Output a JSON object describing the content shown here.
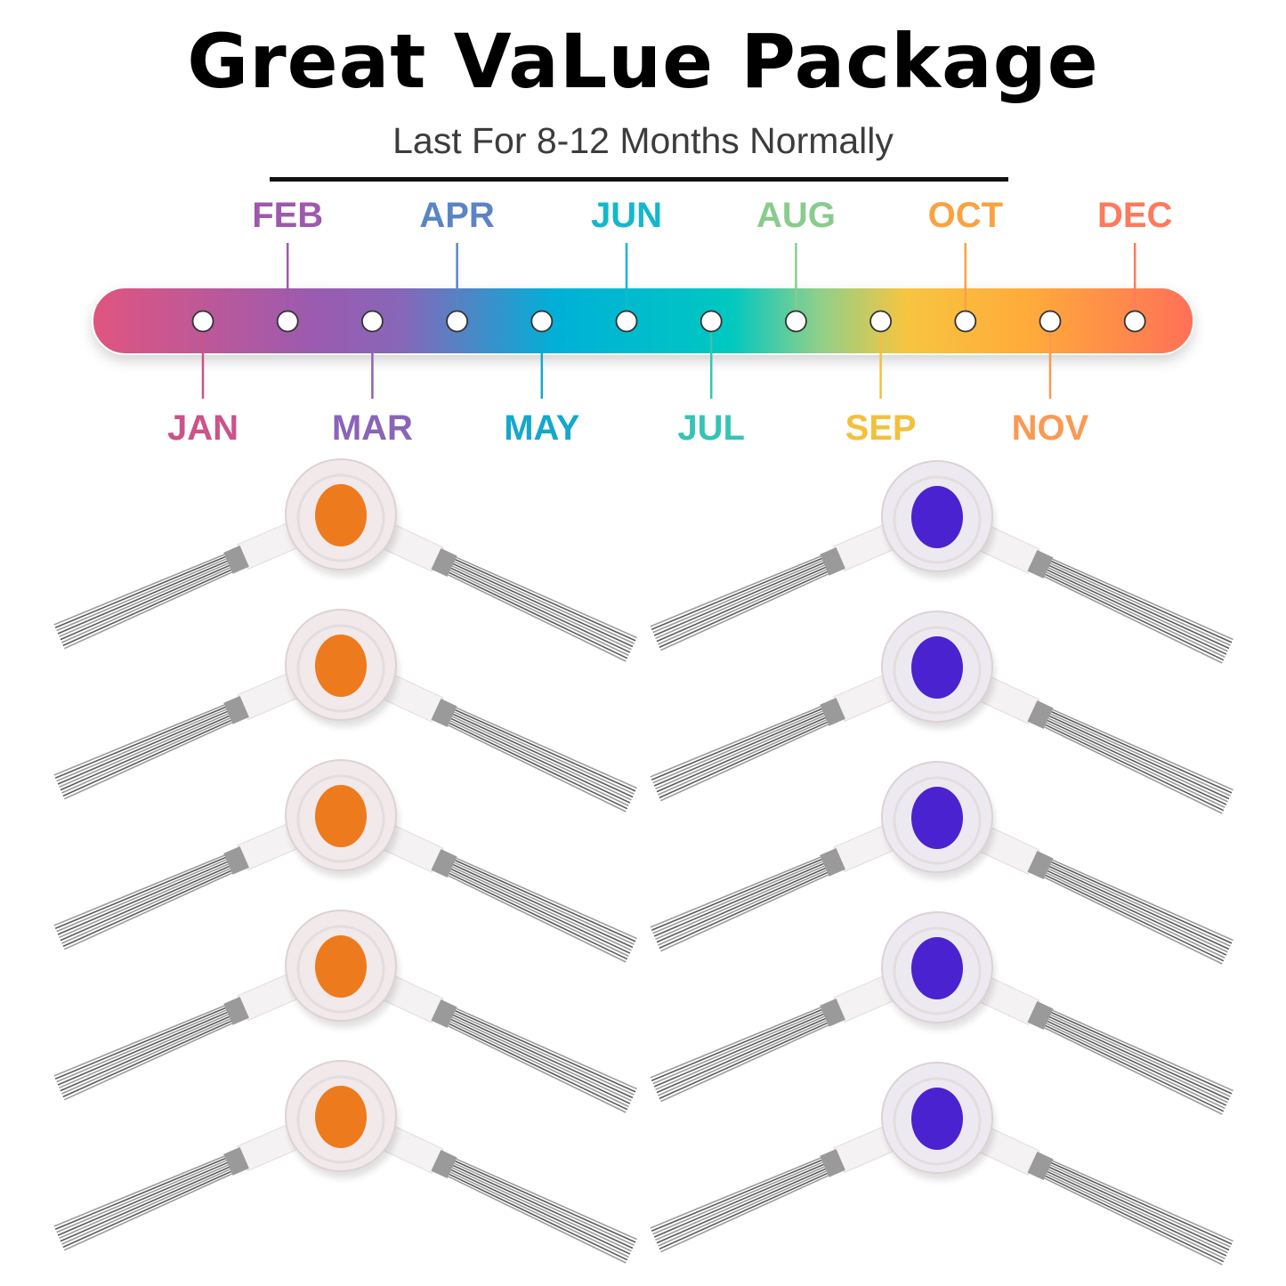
{
  "header": {
    "title": "Great VaLue Package",
    "subtitle": "Last For 8-12 Months Normally"
  },
  "timeline": {
    "gradient_colors": [
      "#e0557f",
      "#9b5bb0",
      "#8866b8",
      "#00b0d8",
      "#00c8c0",
      "#8fd08a",
      "#f7c540",
      "#ffab3a",
      "#ff7058"
    ],
    "months": [
      {
        "label": "JAN",
        "color": "#cc5288",
        "position": "bottom"
      },
      {
        "label": "FEB",
        "color": "#9e58ad",
        "position": "top"
      },
      {
        "label": "MAR",
        "color": "#8a64b6",
        "position": "bottom"
      },
      {
        "label": "APR",
        "color": "#5b84c6",
        "position": "top"
      },
      {
        "label": "MAY",
        "color": "#14a8cc",
        "position": "bottom"
      },
      {
        "label": "JUN",
        "color": "#12b8cc",
        "position": "top"
      },
      {
        "label": "JUL",
        "color": "#36c4b4",
        "position": "bottom"
      },
      {
        "label": "AUG",
        "color": "#88cc8c",
        "position": "top"
      },
      {
        "label": "SEP",
        "color": "#f3c03e",
        "position": "bottom"
      },
      {
        "label": "OCT",
        "color": "#f8a340",
        "position": "top"
      },
      {
        "label": "NOV",
        "color": "#fa9a52",
        "position": "bottom"
      },
      {
        "label": "DEC",
        "color": "#fe7a5c",
        "position": "top"
      }
    ]
  },
  "products": {
    "left_column": {
      "count": 5,
      "center_color": "#ee7a1e",
      "hub_color": "#f1e9ea",
      "bristle_color": "#6d6d6d"
    },
    "right_column": {
      "count": 5,
      "center_color": "#4b22d0",
      "hub_color": "#eceaf0",
      "bristle_color": "#6d6d6d"
    }
  }
}
